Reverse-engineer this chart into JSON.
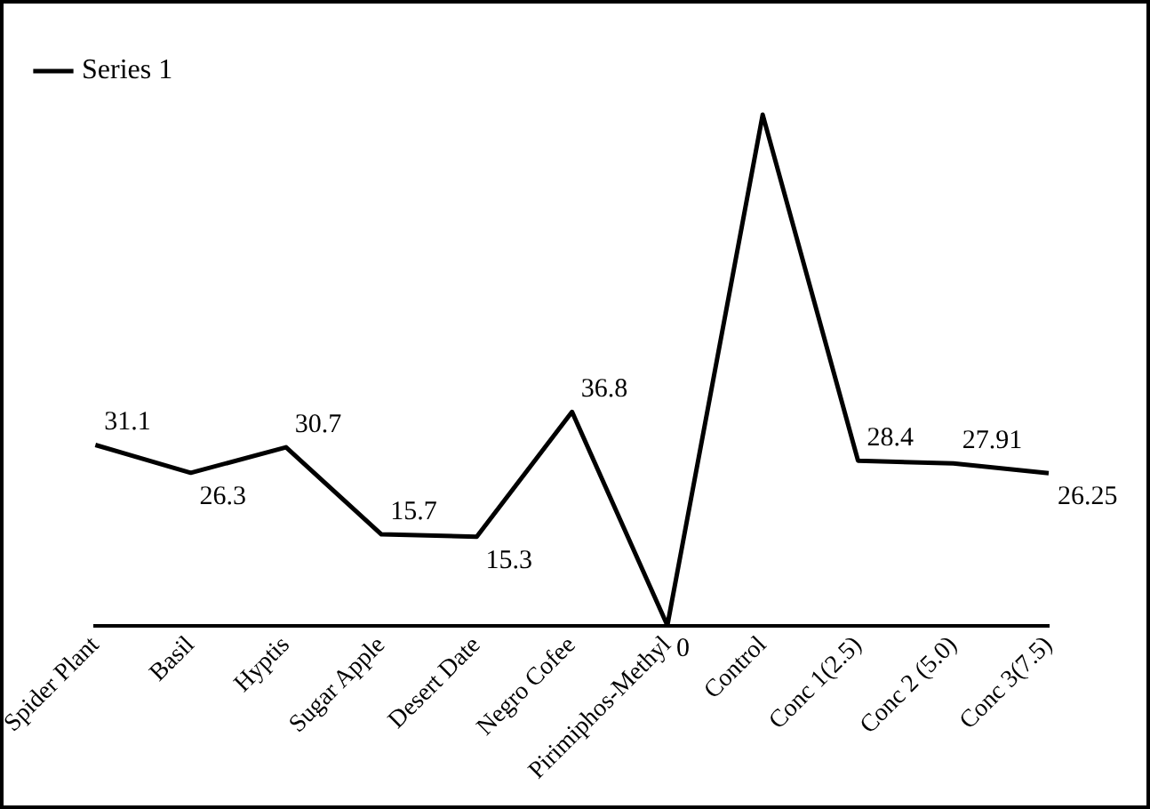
{
  "chart_data": {
    "type": "line",
    "categories": [
      "Spider Plant",
      "Basil",
      "Hyptis",
      "Sugar Apple",
      "Desert Date",
      "Negro Cofee",
      "Pirimiphos-Methyl",
      "Control",
      "Conc 1(2.5)",
      "Conc 2 (5.0)",
      "Conc 3(7.5)"
    ],
    "series": [
      {
        "name": "Series 1",
        "color": "#000000",
        "values": [
          31.1,
          26.3,
          30.7,
          15.7,
          15.3,
          36.8,
          0,
          88,
          28.4,
          27.91,
          26.25
        ],
        "value_labels": [
          "31.1",
          "26.3",
          "30.7",
          "15.7",
          "15.3",
          "36.8",
          "0",
          null,
          "28.4",
          "27.91",
          "26.25"
        ]
      }
    ],
    "legend": "top left",
    "marker": "none",
    "line_style": "solid",
    "grid": false
  }
}
